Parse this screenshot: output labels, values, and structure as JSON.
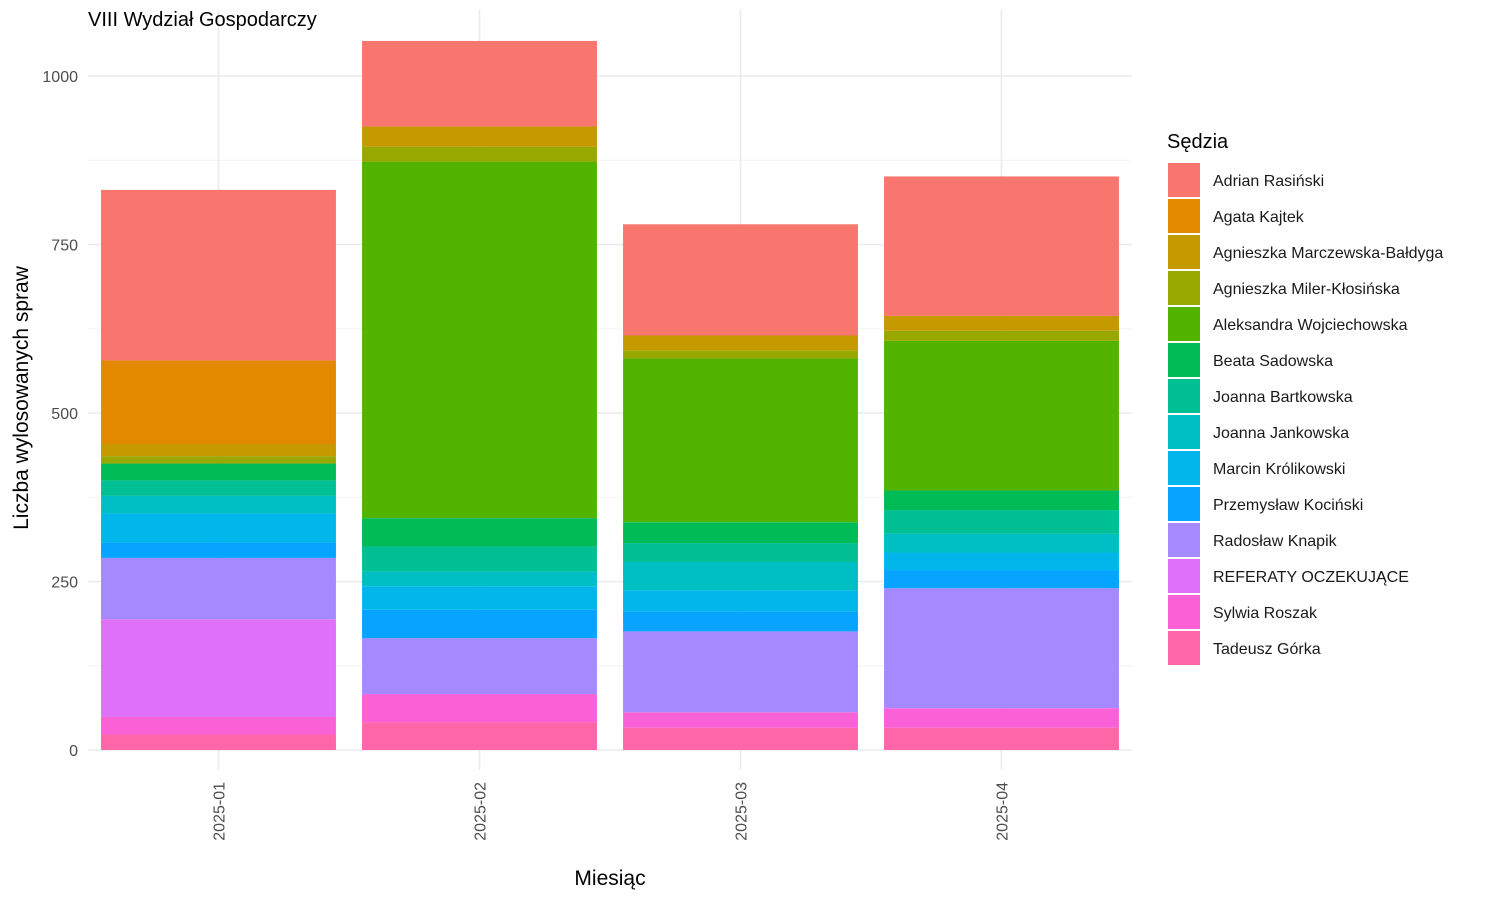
{
  "chart_data": {
    "type": "bar",
    "stacked": true,
    "title": "VIII Wydział Gospodarczy",
    "xlabel": "Miesiąc",
    "ylabel": "Liczba wylosowanych spraw",
    "legend_title": "Sędzia",
    "legend_position": "right",
    "grid": true,
    "ylim": [
      0,
      1050
    ],
    "yticks": [
      0,
      250,
      500,
      750,
      1000
    ],
    "categories": [
      "2025-01",
      "2025-02",
      "2025-03",
      "2025-04"
    ],
    "series": [
      {
        "name": "Adrian Rasiński",
        "color": "#F8766D",
        "values": [
          253,
          127,
          165,
          207
        ]
      },
      {
        "name": "Agata Kajtek",
        "color": "#E38900",
        "values": [
          124,
          0,
          0,
          0
        ]
      },
      {
        "name": "Agnieszka Marczewska-Bałdyga",
        "color": "#C49A00",
        "values": [
          18,
          30,
          22,
          22
        ]
      },
      {
        "name": "Agnieszka Miler-Kłosińska",
        "color": "#99A800",
        "values": [
          11,
          22,
          12,
          15
        ]
      },
      {
        "name": "Aleksandra Wojciechowska",
        "color": "#53B400",
        "values": [
          0,
          529,
          243,
          222
        ]
      },
      {
        "name": "Beata Sadowska",
        "color": "#00BC56",
        "values": [
          25,
          42,
          31,
          29
        ]
      },
      {
        "name": "Joanna Bartkowska",
        "color": "#00C094",
        "values": [
          23,
          37,
          28,
          35
        ]
      },
      {
        "name": "Joanna Jankowska",
        "color": "#00BFC4",
        "values": [
          26,
          22,
          42,
          28
        ]
      },
      {
        "name": "Marcin Królikowski",
        "color": "#00B6EB",
        "values": [
          43,
          35,
          31,
          26
        ]
      },
      {
        "name": "Przemysław Kociński",
        "color": "#06A4FF",
        "values": [
          23,
          42,
          30,
          27
        ]
      },
      {
        "name": "Radosław Knapik",
        "color": "#A58AFF",
        "values": [
          91,
          83,
          120,
          178
        ]
      },
      {
        "name": "REFERATY OCZEKUJĄCE",
        "color": "#DF70F8",
        "values": [
          145,
          0,
          0,
          0
        ]
      },
      {
        "name": "Sylwia Roszak",
        "color": "#FB61D7",
        "values": [
          26,
          42,
          23,
          29
        ]
      },
      {
        "name": "Tadeusz Górka",
        "color": "#FF66A8",
        "values": [
          23,
          41,
          33,
          33
        ]
      }
    ]
  }
}
